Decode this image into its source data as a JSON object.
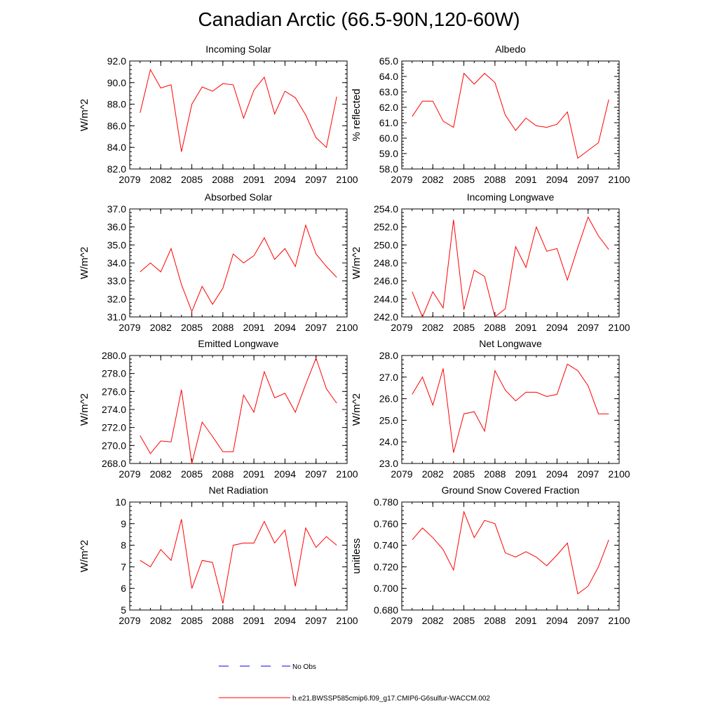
{
  "title": "Canadian Arctic (66.5-90N,120-60W)",
  "colors": {
    "model": "#ff0000",
    "obs": "#0000ff"
  },
  "legend": {
    "obs_label": "No Obs",
    "model_label": "b.e21.BWSSP585cmip6.f09_g17.CMIP6-G6sulfur-WACCM.002"
  },
  "chart_data": [
    {
      "type": "line",
      "title": "Incoming Solar",
      "ylabel": "W/m^2",
      "x": [
        2080,
        2081,
        2082,
        2083,
        2084,
        2085,
        2086,
        2087,
        2088,
        2089,
        2090,
        2091,
        2092,
        2093,
        2094,
        2095,
        2096,
        2097,
        2098,
        2099
      ],
      "values": [
        87.2,
        91.2,
        89.5,
        89.8,
        83.6,
        88.0,
        89.6,
        89.2,
        89.9,
        89.8,
        86.7,
        89.3,
        90.5,
        87.1,
        89.2,
        88.6,
        87.0,
        84.9,
        84.0,
        88.7
      ],
      "xlim": [
        2079,
        2100
      ],
      "ylim": [
        82,
        92
      ],
      "xticks": [
        "2079",
        "2082",
        "2085",
        "2088",
        "2091",
        "2094",
        "2097",
        "2100"
      ],
      "yticks": [
        "82.0",
        "84.0",
        "86.0",
        "88.0",
        "90.0",
        "92.0"
      ]
    },
    {
      "type": "line",
      "title": "Albedo",
      "ylabel": "% reflected",
      "x": [
        2080,
        2081,
        2082,
        2083,
        2084,
        2085,
        2086,
        2087,
        2088,
        2089,
        2090,
        2091,
        2092,
        2093,
        2094,
        2095,
        2096,
        2097,
        2098,
        2099
      ],
      "values": [
        61.4,
        62.4,
        62.4,
        61.1,
        60.7,
        64.2,
        63.5,
        64.2,
        63.6,
        61.5,
        60.5,
        61.3,
        60.8,
        60.7,
        60.9,
        61.7,
        58.7,
        59.2,
        59.7,
        62.5
      ],
      "xlim": [
        2079,
        2100
      ],
      "ylim": [
        58,
        65
      ],
      "xticks": [
        "2079",
        "2082",
        "2085",
        "2088",
        "2091",
        "2094",
        "2097",
        "2100"
      ],
      "yticks": [
        "58.0",
        "59.0",
        "60.0",
        "61.0",
        "62.0",
        "63.0",
        "64.0",
        "65.0"
      ]
    },
    {
      "type": "line",
      "title": "Absorbed Solar",
      "ylabel": "W/m^2",
      "x": [
        2080,
        2081,
        2082,
        2083,
        2084,
        2085,
        2086,
        2087,
        2088,
        2089,
        2090,
        2091,
        2092,
        2093,
        2094,
        2095,
        2096,
        2097,
        2098,
        2099
      ],
      "values": [
        33.5,
        34.0,
        33.5,
        34.8,
        32.8,
        31.3,
        32.7,
        31.7,
        32.6,
        34.5,
        34.0,
        34.4,
        35.4,
        34.2,
        34.8,
        33.8,
        36.1,
        34.5,
        33.8,
        33.2
      ],
      "xlim": [
        2079,
        2100
      ],
      "ylim": [
        31,
        37
      ],
      "xticks": [
        "2079",
        "2082",
        "2085",
        "2088",
        "2091",
        "2094",
        "2097",
        "2100"
      ],
      "yticks": [
        "31.0",
        "32.0",
        "33.0",
        "34.0",
        "35.0",
        "36.0",
        "37.0"
      ]
    },
    {
      "type": "line",
      "title": "Incoming Longwave",
      "ylabel": "W/m^2",
      "x": [
        2080,
        2081,
        2082,
        2083,
        2084,
        2085,
        2086,
        2087,
        2088,
        2089,
        2090,
        2091,
        2092,
        2093,
        2094,
        2095,
        2096,
        2097,
        2098,
        2099
      ],
      "values": [
        244.8,
        242.0,
        244.8,
        243.0,
        252.8,
        242.8,
        247.2,
        246.5,
        242.0,
        242.9,
        249.8,
        247.5,
        252.0,
        249.3,
        249.6,
        246.1,
        249.7,
        253.1,
        251.0,
        249.5
      ],
      "xlim": [
        2079,
        2100
      ],
      "ylim": [
        242,
        254
      ],
      "xticks": [
        "2079",
        "2082",
        "2085",
        "2088",
        "2091",
        "2094",
        "2097",
        "2100"
      ],
      "yticks": [
        "242.0",
        "244.0",
        "246.0",
        "248.0",
        "250.0",
        "252.0",
        "254.0"
      ]
    },
    {
      "type": "line",
      "title": "Emitted Longwave",
      "ylabel": "W/m^2",
      "x": [
        2080,
        2081,
        2082,
        2083,
        2084,
        2085,
        2086,
        2087,
        2088,
        2089,
        2090,
        2091,
        2092,
        2093,
        2094,
        2095,
        2096,
        2097,
        2098,
        2099
      ],
      "values": [
        271.1,
        269.1,
        270.5,
        270.4,
        276.2,
        268.0,
        272.6,
        271.0,
        269.3,
        269.3,
        275.6,
        273.7,
        278.2,
        275.3,
        275.8,
        273.7,
        276.8,
        279.7,
        276.3,
        274.7
      ],
      "xlim": [
        2079,
        2100
      ],
      "ylim": [
        268,
        280
      ],
      "xticks": [
        "2079",
        "2082",
        "2085",
        "2088",
        "2091",
        "2094",
        "2097",
        "2100"
      ],
      "yticks": [
        "268.0",
        "270.0",
        "272.0",
        "274.0",
        "276.0",
        "278.0",
        "280.0"
      ]
    },
    {
      "type": "line",
      "title": "Net Longwave",
      "ylabel": "W/m^2",
      "x": [
        2080,
        2081,
        2082,
        2083,
        2084,
        2085,
        2086,
        2087,
        2088,
        2089,
        2090,
        2091,
        2092,
        2093,
        2094,
        2095,
        2096,
        2097,
        2098,
        2099
      ],
      "values": [
        26.2,
        27.0,
        25.7,
        27.4,
        23.5,
        25.3,
        25.4,
        24.5,
        27.3,
        26.4,
        25.9,
        26.3,
        26.3,
        26.1,
        26.2,
        27.6,
        27.3,
        26.6,
        25.3,
        25.3
      ],
      "xlim": [
        2079,
        2100
      ],
      "ylim": [
        23,
        28
      ],
      "xticks": [
        "2079",
        "2082",
        "2085",
        "2088",
        "2091",
        "2094",
        "2097",
        "2100"
      ],
      "yticks": [
        "23.0",
        "24.0",
        "25.0",
        "26.0",
        "27.0",
        "28.0"
      ]
    },
    {
      "type": "line",
      "title": "Net Radiation",
      "ylabel": "W/m^2",
      "x": [
        2080,
        2081,
        2082,
        2083,
        2084,
        2085,
        2086,
        2087,
        2088,
        2089,
        2090,
        2091,
        2092,
        2093,
        2094,
        2095,
        2096,
        2097,
        2098,
        2099
      ],
      "values": [
        7.3,
        7.0,
        7.8,
        7.3,
        9.2,
        6.0,
        7.3,
        7.2,
        5.3,
        8.0,
        8.1,
        8.1,
        9.1,
        8.1,
        8.7,
        6.1,
        8.8,
        7.9,
        8.4,
        8.0
      ],
      "xlim": [
        2079,
        2100
      ],
      "ylim": [
        5,
        10
      ],
      "xticks": [
        "2079",
        "2082",
        "2085",
        "2088",
        "2091",
        "2094",
        "2097",
        "2100"
      ],
      "yticks": [
        "5",
        "6",
        "7",
        "8",
        "9",
        "10"
      ]
    },
    {
      "type": "line",
      "title": "Ground Snow Covered Fraction",
      "ylabel": "unitless",
      "x": [
        2080,
        2081,
        2082,
        2083,
        2084,
        2085,
        2086,
        2087,
        2088,
        2089,
        2090,
        2091,
        2092,
        2093,
        2094,
        2095,
        2096,
        2097,
        2098,
        2099
      ],
      "values": [
        0.745,
        0.756,
        0.747,
        0.736,
        0.717,
        0.771,
        0.747,
        0.763,
        0.76,
        0.733,
        0.729,
        0.734,
        0.729,
        0.721,
        0.731,
        0.742,
        0.695,
        0.702,
        0.72,
        0.745
      ],
      "xlim": [
        2079,
        2100
      ],
      "ylim": [
        0.68,
        0.78
      ],
      "xticks": [
        "2079",
        "2082",
        "2085",
        "2088",
        "2091",
        "2094",
        "2097",
        "2100"
      ],
      "yticks": [
        "0.680",
        "0.700",
        "0.720",
        "0.740",
        "0.760",
        "0.780"
      ]
    }
  ]
}
